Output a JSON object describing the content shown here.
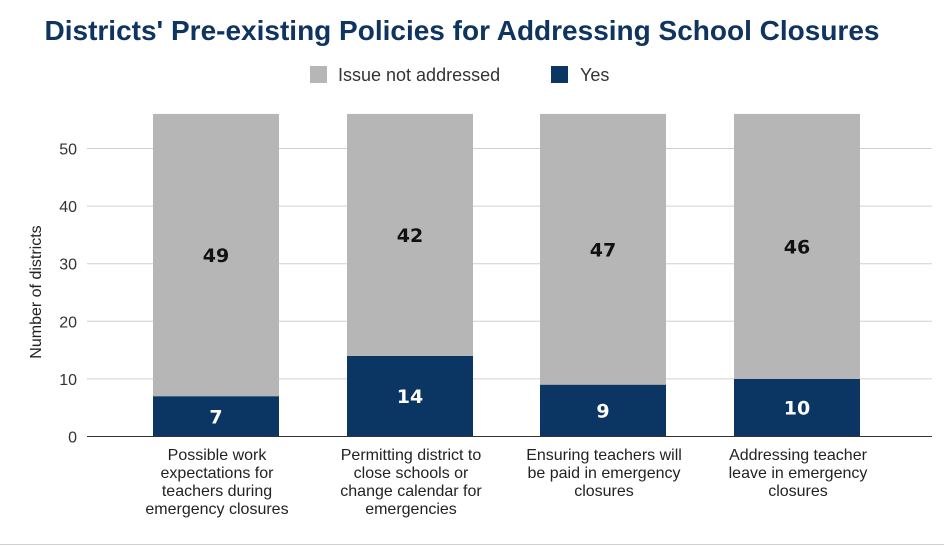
{
  "chart_data": {
    "type": "bar",
    "stacked": true,
    "title": "Districts' Pre-existing Policies for Addressing School Closures",
    "ylabel": "Number of districts",
    "xlabel": "",
    "ylim": [
      0,
      56
    ],
    "yticks": [
      0,
      10,
      20,
      30,
      40,
      50
    ],
    "grid": true,
    "legend_placement": "top",
    "categories": [
      [
        "Possible work",
        "expectations for",
        "teachers during",
        "emergency closures"
      ],
      [
        "Permitting district to",
        "close schools or",
        "change calendar for",
        "emergencies"
      ],
      [
        "Ensuring teachers will",
        "be paid in emergency",
        "closures"
      ],
      [
        "Addressing teacher",
        "leave in emergency",
        "closures"
      ]
    ],
    "series": [
      {
        "name": "Yes",
        "color": "#0b3562",
        "label_color": "#ffffff",
        "values": [
          7,
          14,
          9,
          10
        ]
      },
      {
        "name": "Issue not addressed",
        "color": "#b6b6b6",
        "label_color": "#111111",
        "values": [
          49,
          42,
          47,
          46
        ]
      }
    ],
    "legend_order": [
      1,
      0
    ],
    "colors": {
      "title": "#0f3460",
      "grid": "#d0d0d0",
      "axis": "#333333"
    }
  }
}
